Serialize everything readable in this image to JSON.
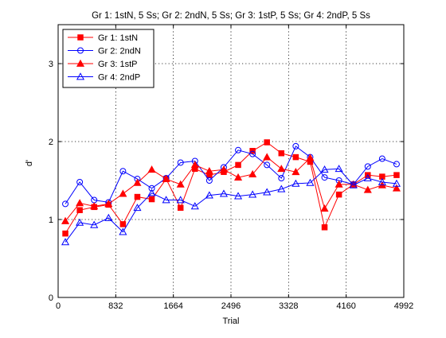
{
  "chart_data": {
    "type": "line",
    "title": "Gr 1: 1stN, 5 Ss; Gr 2: 2ndN, 5 Ss; Gr 3: 1stP, 5 Ss; Gr 4: 2ndP, 5 Ss",
    "xlabel": "Trial",
    "ylabel": "d'",
    "xlim": [
      0,
      4992
    ],
    "ylim": [
      0,
      3.5
    ],
    "xticks": [
      0,
      832,
      1664,
      2496,
      3328,
      4160,
      4992
    ],
    "yticks": [
      0,
      1,
      2,
      3
    ],
    "xtick_labels": [
      "0",
      "832",
      "1664",
      "2496",
      "3328",
      "4160",
      "4992"
    ],
    "ytick_labels": [
      "0",
      "1",
      "2",
      "3"
    ],
    "grid": true,
    "legend_position": "top-left",
    "x": [
      104,
      312,
      520,
      728,
      936,
      1144,
      1352,
      1560,
      1768,
      1976,
      2184,
      2392,
      2600,
      2808,
      3016,
      3224,
      3432,
      3640,
      3848,
      4056,
      4264,
      4472,
      4680,
      4888
    ],
    "series": [
      {
        "name": "Gr 1: 1stN",
        "color": "#ff0000",
        "marker": "square",
        "filled": true,
        "values": [
          0.82,
          1.12,
          1.16,
          1.19,
          0.94,
          1.29,
          1.26,
          1.52,
          1.15,
          1.65,
          1.57,
          1.61,
          1.7,
          1.88,
          1.99,
          1.85,
          1.8,
          1.74,
          0.9,
          1.32,
          1.45,
          1.57,
          1.55,
          1.57
        ]
      },
      {
        "name": "Gr 2: 2ndN",
        "color": "#0000ff",
        "marker": "circle",
        "filled": false,
        "values": [
          1.2,
          1.48,
          1.25,
          1.22,
          1.62,
          1.52,
          1.4,
          1.53,
          1.73,
          1.75,
          1.5,
          1.67,
          1.89,
          1.84,
          1.7,
          1.53,
          1.94,
          1.8,
          1.54,
          1.5,
          1.45,
          1.68,
          1.78,
          1.71
        ]
      },
      {
        "name": "Gr 3: 1stP",
        "color": "#ff0000",
        "marker": "triangle",
        "filled": true,
        "values": [
          0.98,
          1.21,
          1.17,
          1.2,
          1.33,
          1.47,
          1.64,
          1.52,
          1.45,
          1.7,
          1.62,
          1.64,
          1.54,
          1.58,
          1.8,
          1.65,
          1.61,
          1.79,
          1.14,
          1.45,
          1.45,
          1.38,
          1.44,
          1.4
        ]
      },
      {
        "name": "Gr 4: 2ndP",
        "color": "#0000ff",
        "marker": "triangle",
        "filled": false,
        "values": [
          0.71,
          0.96,
          0.93,
          1.02,
          0.84,
          1.15,
          1.34,
          1.25,
          1.25,
          1.17,
          1.31,
          1.33,
          1.3,
          1.32,
          1.35,
          1.39,
          1.46,
          1.47,
          1.64,
          1.65,
          1.44,
          1.53,
          1.48,
          1.46
        ]
      }
    ]
  }
}
